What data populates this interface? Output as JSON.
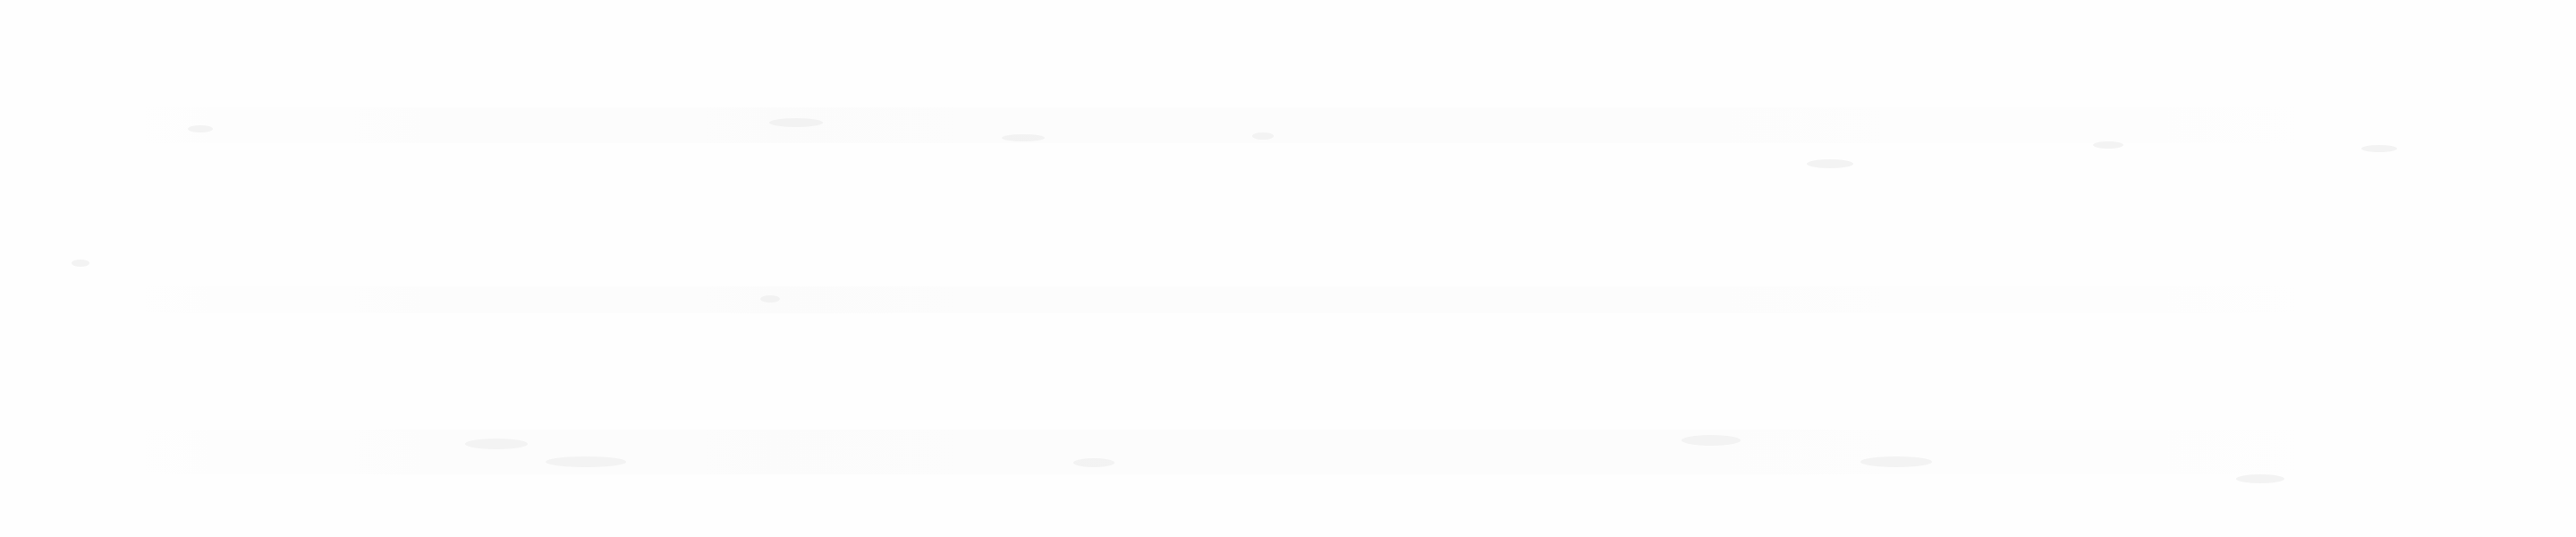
{
  "background": {
    "base_color": "#fefefe",
    "texture_color": "#f0f0f0"
  }
}
